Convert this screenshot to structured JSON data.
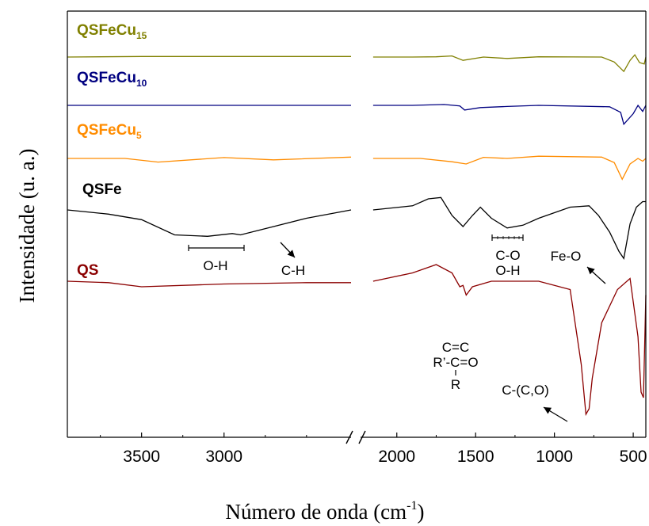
{
  "chart_data": {
    "type": "line",
    "title": "",
    "xlabel": "Número de onda (cm⁻¹)",
    "xlabel_base": "Número de onda (cm",
    "xlabel_sup": "-1",
    "xlabel_close": ")",
    "ylabel": "Intensidade (u. a.)",
    "x_reversed": true,
    "axis_break": true,
    "axis_break_symbol": "//",
    "xlim_left_segment": [
      3950,
      2230
    ],
    "xlim_right_segment": [
      2230,
      420
    ],
    "xticks": [
      {
        "value": 3500,
        "label": "3500"
      },
      {
        "value": 3000,
        "label": "3000"
      },
      {
        "value": 2000,
        "label": "2000"
      },
      {
        "value": 1500,
        "label": "1500"
      },
      {
        "value": 1000,
        "label": "1000"
      },
      {
        "value": 500,
        "label": "500"
      }
    ],
    "yticks_shown": false,
    "grid": false,
    "series": [
      {
        "name": "QSFeCu15",
        "label_base": "QSFeCu",
        "label_sub": "15",
        "color": "#808000",
        "points": [
          [
            3950,
            0.0
          ],
          [
            3500,
            0.02
          ],
          [
            3000,
            0.02
          ],
          [
            2230,
            0.02
          ],
          [
            2150,
            0.0
          ],
          [
            1900,
            0.0
          ],
          [
            1750,
            0.01
          ],
          [
            1650,
            0.04
          ],
          [
            1580,
            -0.12
          ],
          [
            1450,
            0.0
          ],
          [
            1300,
            -0.05
          ],
          [
            1100,
            0.01
          ],
          [
            700,
            0.0
          ],
          [
            620,
            -0.18
          ],
          [
            560,
            -0.52
          ],
          [
            520,
            -0.12
          ],
          [
            490,
            0.08
          ],
          [
            460,
            -0.2
          ],
          [
            430,
            -0.25
          ],
          [
            420,
            0.0
          ]
        ]
      },
      {
        "name": "QSFeCu10",
        "label_base": "QSFeCu",
        "label_sub": "10",
        "color": "#000080",
        "points": [
          [
            3950,
            0.0
          ],
          [
            3500,
            0.0
          ],
          [
            3000,
            0.0
          ],
          [
            2230,
            0.0
          ],
          [
            2150,
            0.0
          ],
          [
            1900,
            0.0
          ],
          [
            1700,
            0.03
          ],
          [
            1600,
            -0.02
          ],
          [
            1570,
            -0.17
          ],
          [
            1470,
            -0.08
          ],
          [
            1300,
            -0.04
          ],
          [
            1100,
            0.0
          ],
          [
            650,
            -0.05
          ],
          [
            580,
            -0.25
          ],
          [
            560,
            -0.68
          ],
          [
            500,
            -0.3
          ],
          [
            470,
            0.0
          ],
          [
            440,
            -0.22
          ],
          [
            420,
            0.0
          ]
        ]
      },
      {
        "name": "QSFeCu5",
        "label_base": "QSFeCu",
        "label_sub": "5",
        "color": "#FF8C00",
        "points": [
          [
            3950,
            0.0
          ],
          [
            3600,
            0.0
          ],
          [
            3400,
            -0.13
          ],
          [
            3000,
            0.03
          ],
          [
            2700,
            -0.05
          ],
          [
            2230,
            0.05
          ],
          [
            2150,
            0.0
          ],
          [
            1850,
            0.0
          ],
          [
            1650,
            -0.12
          ],
          [
            1560,
            -0.2
          ],
          [
            1450,
            0.04
          ],
          [
            1300,
            0.0
          ],
          [
            1100,
            0.08
          ],
          [
            700,
            0.05
          ],
          [
            620,
            -0.15
          ],
          [
            570,
            -0.75
          ],
          [
            520,
            -0.2
          ],
          [
            470,
            0.0
          ],
          [
            440,
            -0.1
          ],
          [
            420,
            0.0
          ]
        ]
      },
      {
        "name": "QSFe",
        "label_base": "QSFe",
        "label_sub": "",
        "color": "#000000",
        "points": [
          [
            3950,
            0.0
          ],
          [
            3700,
            -0.15
          ],
          [
            3500,
            -0.35
          ],
          [
            3300,
            -0.9
          ],
          [
            3100,
            -0.95
          ],
          [
            2950,
            -0.85
          ],
          [
            2900,
            -0.9
          ],
          [
            2700,
            -0.6
          ],
          [
            2500,
            -0.3
          ],
          [
            2230,
            0.0
          ],
          [
            2150,
            0.0
          ],
          [
            1900,
            0.15
          ],
          [
            1800,
            0.4
          ],
          [
            1720,
            0.45
          ],
          [
            1650,
            -0.2
          ],
          [
            1580,
            -0.6
          ],
          [
            1520,
            -0.2
          ],
          [
            1470,
            0.1
          ],
          [
            1400,
            -0.3
          ],
          [
            1300,
            -0.65
          ],
          [
            1200,
            -0.55
          ],
          [
            1100,
            -0.3
          ],
          [
            900,
            0.1
          ],
          [
            780,
            0.15
          ],
          [
            720,
            -0.2
          ],
          [
            650,
            -0.8
          ],
          [
            590,
            -1.5
          ],
          [
            560,
            -1.75
          ],
          [
            520,
            -0.5
          ],
          [
            480,
            0.1
          ],
          [
            440,
            0.3
          ],
          [
            420,
            0.3
          ]
        ]
      },
      {
        "name": "QS",
        "label_base": "QS",
        "label_sub": "",
        "color": "#8B0000",
        "points": [
          [
            3950,
            0.0
          ],
          [
            3700,
            -0.05
          ],
          [
            3500,
            -0.2
          ],
          [
            3000,
            -0.1
          ],
          [
            2500,
            -0.05
          ],
          [
            2230,
            -0.05
          ],
          [
            2150,
            0.0
          ],
          [
            1900,
            0.3
          ],
          [
            1750,
            0.6
          ],
          [
            1650,
            0.3
          ],
          [
            1600,
            -0.2
          ],
          [
            1580,
            -0.15
          ],
          [
            1560,
            -0.5
          ],
          [
            1520,
            -0.2
          ],
          [
            1400,
            0.0
          ],
          [
            1100,
            0.0
          ],
          [
            900,
            -0.3
          ],
          [
            830,
            -3.0
          ],
          [
            800,
            -4.8
          ],
          [
            780,
            -4.6
          ],
          [
            760,
            -3.5
          ],
          [
            700,
            -1.5
          ],
          [
            600,
            -0.3
          ],
          [
            520,
            0.1
          ],
          [
            470,
            -2.0
          ],
          [
            450,
            -4.0
          ],
          [
            435,
            -4.2
          ],
          [
            420,
            -0.5
          ]
        ]
      }
    ],
    "annotations": [
      {
        "text": "O-H"
      },
      {
        "text": "C-H"
      },
      {
        "text": "C-O"
      },
      {
        "text": "O-H"
      },
      {
        "text": "Fe-O"
      },
      {
        "text": "C=C"
      },
      {
        "text": "R’-C=O"
      },
      {
        "text": "R"
      },
      {
        "text": "C-(C,O)"
      }
    ]
  }
}
